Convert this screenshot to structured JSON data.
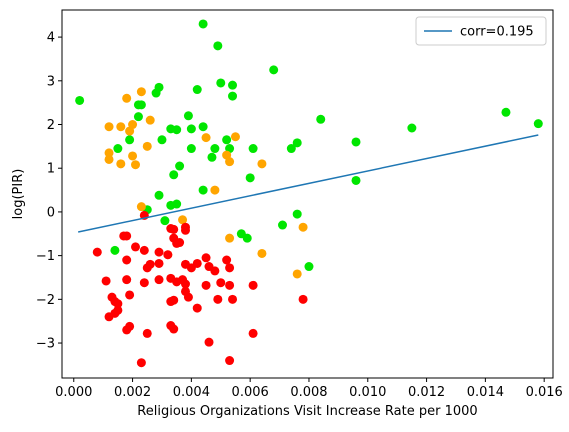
{
  "chart_data": {
    "type": "scatter",
    "xlabel": "Religious Organizations Visit Increase Rate per 1000",
    "ylabel": "log(PIR)",
    "xlim": [
      -0.0004,
      0.0163
    ],
    "ylim": [
      -3.8,
      4.62
    ],
    "grid": false,
    "legend_placement": "top-right",
    "xticks": [
      {
        "value": 0.0,
        "label": "0.000"
      },
      {
        "value": 0.002,
        "label": "0.002"
      },
      {
        "value": 0.004,
        "label": "0.004"
      },
      {
        "value": 0.006,
        "label": "0.006"
      },
      {
        "value": 0.008,
        "label": "0.008"
      },
      {
        "value": 0.01,
        "label": "0.010"
      },
      {
        "value": 0.012,
        "label": "0.012"
      },
      {
        "value": 0.014,
        "label": "0.014"
      },
      {
        "value": 0.016,
        "label": "0.016"
      }
    ],
    "yticks": [
      {
        "value": -3,
        "label": "−3"
      },
      {
        "value": -2,
        "label": "−2"
      },
      {
        "value": -1,
        "label": "−1"
      },
      {
        "value": 0,
        "label": "0"
      },
      {
        "value": 1,
        "label": "1"
      },
      {
        "value": 2,
        "label": "2"
      },
      {
        "value": 3,
        "label": "3"
      },
      {
        "value": 4,
        "label": "4"
      }
    ],
    "fit_line": {
      "label": "corr=0.195",
      "color": "#1f77b4",
      "x": [
        0.00015,
        0.0158
      ],
      "y": [
        -0.46,
        1.76
      ]
    },
    "series": [
      {
        "color": "#00e600",
        "points": [
          [
            0.0002,
            2.55
          ],
          [
            0.0044,
            4.3
          ],
          [
            0.0049,
            3.8
          ],
          [
            0.0068,
            3.25
          ],
          [
            0.0029,
            2.85
          ],
          [
            0.0028,
            2.72
          ],
          [
            0.0042,
            2.8
          ],
          [
            0.005,
            2.95
          ],
          [
            0.0054,
            2.9
          ],
          [
            0.0054,
            2.65
          ],
          [
            0.0022,
            2.45
          ],
          [
            0.0023,
            2.45
          ],
          [
            0.0022,
            2.18
          ],
          [
            0.0039,
            2.2
          ],
          [
            0.0033,
            1.9
          ],
          [
            0.0035,
            1.88
          ],
          [
            0.004,
            1.9
          ],
          [
            0.0044,
            1.95
          ],
          [
            0.0019,
            1.65
          ],
          [
            0.0015,
            1.45
          ],
          [
            0.003,
            1.65
          ],
          [
            0.004,
            1.45
          ],
          [
            0.0048,
            1.45
          ],
          [
            0.0052,
            1.65
          ],
          [
            0.0047,
            1.25
          ],
          [
            0.0053,
            1.45
          ],
          [
            0.0061,
            1.45
          ],
          [
            0.0036,
            1.05
          ],
          [
            0.0034,
            0.85
          ],
          [
            0.0044,
            0.5
          ],
          [
            0.006,
            0.78
          ],
          [
            0.0029,
            0.38
          ],
          [
            0.0033,
            0.15
          ],
          [
            0.0035,
            0.18
          ],
          [
            0.0025,
            0.05
          ],
          [
            0.0031,
            -0.2
          ],
          [
            0.0074,
            1.45
          ],
          [
            0.0076,
            1.58
          ],
          [
            0.0084,
            2.12
          ],
          [
            0.0096,
            1.6
          ],
          [
            0.0096,
            0.72
          ],
          [
            0.0115,
            1.92
          ],
          [
            0.0147,
            2.28
          ],
          [
            0.0158,
            2.02
          ],
          [
            0.0071,
            -0.3
          ],
          [
            0.0076,
            -0.05
          ],
          [
            0.0057,
            -0.5
          ],
          [
            0.0059,
            -0.6
          ],
          [
            0.008,
            -1.25
          ],
          [
            0.0014,
            -0.88
          ]
        ]
      },
      {
        "color": "#ffa500",
        "points": [
          [
            0.0023,
            2.75
          ],
          [
            0.0018,
            2.6
          ],
          [
            0.0012,
            1.95
          ],
          [
            0.0016,
            1.95
          ],
          [
            0.0019,
            1.85
          ],
          [
            0.002,
            2.0
          ],
          [
            0.0026,
            2.1
          ],
          [
            0.0012,
            1.35
          ],
          [
            0.0012,
            1.2
          ],
          [
            0.0016,
            1.1
          ],
          [
            0.002,
            1.28
          ],
          [
            0.0021,
            1.08
          ],
          [
            0.0025,
            1.5
          ],
          [
            0.0045,
            1.7
          ],
          [
            0.0052,
            1.3
          ],
          [
            0.0053,
            1.15
          ],
          [
            0.0055,
            1.72
          ],
          [
            0.0064,
            1.1
          ],
          [
            0.0048,
            0.5
          ],
          [
            0.0023,
            0.12
          ],
          [
            0.0037,
            -0.18
          ],
          [
            0.0032,
            -0.98
          ],
          [
            0.0053,
            -0.6
          ],
          [
            0.0064,
            -0.95
          ],
          [
            0.0076,
            -1.42
          ],
          [
            0.0078,
            -0.35
          ]
        ]
      },
      {
        "color": "#ff0000",
        "points": [
          [
            0.0024,
            -0.08
          ],
          [
            0.0033,
            -0.38
          ],
          [
            0.0034,
            -0.4
          ],
          [
            0.0038,
            -0.42
          ],
          [
            0.0038,
            -0.35
          ],
          [
            0.0034,
            -0.6
          ],
          [
            0.0035,
            -0.72
          ],
          [
            0.0036,
            -0.7
          ],
          [
            0.0008,
            -0.92
          ],
          [
            0.0017,
            -0.55
          ],
          [
            0.0018,
            -0.55
          ],
          [
            0.0021,
            -0.8
          ],
          [
            0.0024,
            -0.88
          ],
          [
            0.0029,
            -0.92
          ],
          [
            0.0032,
            -0.98
          ],
          [
            0.0018,
            -1.1
          ],
          [
            0.0026,
            -1.2
          ],
          [
            0.0025,
            -1.28
          ],
          [
            0.0029,
            -1.18
          ],
          [
            0.0038,
            -1.2
          ],
          [
            0.004,
            -1.28
          ],
          [
            0.0042,
            -1.18
          ],
          [
            0.0045,
            -1.05
          ],
          [
            0.0046,
            -1.25
          ],
          [
            0.0048,
            -1.35
          ],
          [
            0.0052,
            -1.1
          ],
          [
            0.0053,
            -1.28
          ],
          [
            0.0011,
            -1.58
          ],
          [
            0.0018,
            -1.55
          ],
          [
            0.0024,
            -1.62
          ],
          [
            0.0029,
            -1.55
          ],
          [
            0.0033,
            -1.52
          ],
          [
            0.0035,
            -1.6
          ],
          [
            0.0037,
            -1.55
          ],
          [
            0.0038,
            -1.65
          ],
          [
            0.0038,
            -1.82
          ],
          [
            0.0045,
            -1.68
          ],
          [
            0.005,
            -1.62
          ],
          [
            0.0053,
            -1.68
          ],
          [
            0.0061,
            -1.68
          ],
          [
            0.0013,
            -1.95
          ],
          [
            0.0014,
            -2.05
          ],
          [
            0.0015,
            -2.1
          ],
          [
            0.0019,
            -1.9
          ],
          [
            0.0033,
            -2.05
          ],
          [
            0.0034,
            -2.02
          ],
          [
            0.0039,
            -1.95
          ],
          [
            0.0042,
            -2.2
          ],
          [
            0.0049,
            -2.0
          ],
          [
            0.0054,
            -2.0
          ],
          [
            0.0078,
            -2.0
          ],
          [
            0.0014,
            -2.32
          ],
          [
            0.0012,
            -2.4
          ],
          [
            0.0015,
            -2.25
          ],
          [
            0.0018,
            -2.7
          ],
          [
            0.0019,
            -2.62
          ],
          [
            0.0025,
            -2.78
          ],
          [
            0.0033,
            -2.6
          ],
          [
            0.0034,
            -2.68
          ],
          [
            0.0046,
            -2.98
          ],
          [
            0.0061,
            -2.78
          ],
          [
            0.0023,
            -3.45
          ],
          [
            0.0053,
            -3.4
          ]
        ]
      }
    ]
  }
}
